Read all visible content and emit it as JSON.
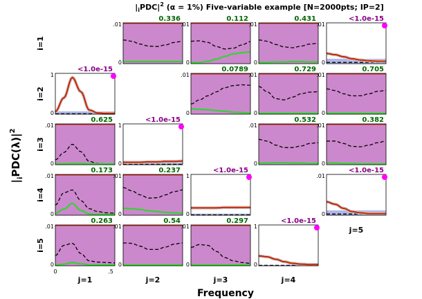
{
  "chart_data": {
    "type": "line",
    "title": "|iPDC|² (α = 1%) Five-variable example [N=2000pts; IP=2]",
    "title_parts": {
      "lead": "|",
      "sub_i": "i",
      "mid": "PDC|",
      "sup_2": "2",
      "rest": " (α = 1%) Five-variable example [N=2000pts; IP=2]"
    },
    "xlabel": "Frequency",
    "ylabel": {
      "lead": "|",
      "sub_i": "i",
      "mid": "PDC(λ)|",
      "sup_2": "2"
    },
    "row_labels": [
      "i=1",
      "i=2",
      "i=3",
      "i=4",
      "i=5"
    ],
    "col_labels": [
      "j=1",
      "j=2",
      "j=3",
      "j=4",
      "j=5"
    ],
    "xlim": [
      0,
      0.5
    ],
    "x_ticks": [
      "0",
      ".5"
    ],
    "grid": false,
    "legend": "none",
    "colors": {
      "significant_fill": "#cc88cc",
      "nonsignificant_fill": "#b0b8e8",
      "threshold": "#000000",
      "pdc_significant": "#cc2200",
      "pdc_nonsignificant": "#22dd22",
      "pvalue_significant": "#880088",
      "pvalue_nonsignificant": "#006600",
      "significance_marker": "#ff00ff"
    },
    "panels": [
      {
        "i": 1,
        "j": 2,
        "ytick": [
          ".01",
          "0"
        ],
        "ymax": 0.01,
        "pvalue": "0.336",
        "significant": false,
        "fill_to": 0.01,
        "threshold": [
          0.0058,
          0.0055,
          0.0048,
          0.0043,
          0.0042,
          0.0046,
          0.0052,
          0.0055
        ],
        "pdc": [
          0.0005,
          0.0005,
          0.0005,
          0.0005,
          0.0005,
          0.0005,
          0.0005,
          0.0005
        ]
      },
      {
        "i": 1,
        "j": 3,
        "ytick": [
          ".01",
          "0"
        ],
        "ymax": 0.01,
        "pvalue": "0.112",
        "significant": false,
        "fill_to": 0.01,
        "threshold": [
          0.0055,
          0.0056,
          0.0052,
          0.0042,
          0.0036,
          0.0038,
          0.0046,
          0.0054
        ],
        "pdc": [
          0.0003,
          0.0003,
          0.0006,
          0.0011,
          0.0018,
          0.0024,
          0.0027,
          0.0029
        ]
      },
      {
        "i": 1,
        "j": 4,
        "ytick": [
          ".01",
          "0"
        ],
        "ymax": 0.01,
        "pvalue": "0.431",
        "significant": false,
        "fill_to": 0.01,
        "threshold": [
          0.0058,
          0.0055,
          0.0047,
          0.0041,
          0.0039,
          0.0043,
          0.0048,
          0.005
        ],
        "pdc": [
          0.0003,
          0.0003,
          0.0004,
          0.0004,
          0.0005,
          0.0005,
          0.0004,
          0.0004
        ]
      },
      {
        "i": 1,
        "j": 5,
        "ytick": [
          ".01",
          "0"
        ],
        "ymax": 0.01,
        "pvalue": "<1.0e-15",
        "significant": true,
        "fill_to": 0.0012,
        "threshold": [
          0.0003,
          0.0003,
          0.0003,
          0.0003,
          0.0003,
          0.0003,
          0.0003,
          0.0003
        ],
        "pdc": [
          0.0025,
          0.0022,
          0.0017,
          0.0012,
          0.0009,
          0.0007,
          0.0006,
          0.0006
        ]
      },
      {
        "i": 2,
        "j": 1,
        "ytick": [
          "1",
          "0"
        ],
        "ymax": 1,
        "pvalue": "<1.0e-15",
        "significant": true,
        "fill_to": 0.07,
        "threshold": [
          0.01,
          0.01,
          0.01,
          0.01,
          0.01,
          0.01,
          0.01,
          0.01
        ],
        "pdc": [
          0.06,
          0.4,
          0.9,
          0.55,
          0.1,
          0.03,
          0.02,
          0.02
        ]
      },
      {
        "i": 2,
        "j": 3,
        "ytick": [
          ".01",
          "0"
        ],
        "ymax": 0.01,
        "pvalue": "0.0789",
        "significant": false,
        "fill_to": 0.01,
        "threshold": [
          0.0025,
          0.0035,
          0.0045,
          0.0055,
          0.0065,
          0.007,
          0.0072,
          0.0071
        ],
        "pdc": [
          0.0013,
          0.0012,
          0.0011,
          0.0009,
          0.0007,
          0.0005,
          0.0004,
          0.0003
        ]
      },
      {
        "i": 2,
        "j": 4,
        "ytick": [
          ".01",
          "0"
        ],
        "ymax": 0.01,
        "pvalue": "0.729",
        "significant": false,
        "fill_to": 0.01,
        "threshold": [
          0.0068,
          0.0055,
          0.0038,
          0.0035,
          0.0042,
          0.005,
          0.0054,
          0.0055
        ],
        "pdc": [
          0.0002,
          0.0002,
          0.0002,
          0.0002,
          0.0002,
          0.0002,
          0.0002,
          0.0002
        ]
      },
      {
        "i": 2,
        "j": 5,
        "ytick": [
          ".01",
          "0"
        ],
        "ymax": 0.01,
        "pvalue": "0.705",
        "significant": false,
        "fill_to": 0.01,
        "threshold": [
          0.0062,
          0.0058,
          0.005,
          0.0045,
          0.0045,
          0.005,
          0.0056,
          0.0058
        ],
        "pdc": [
          0.0002,
          0.0002,
          0.0002,
          0.0002,
          0.0002,
          0.0002,
          0.0002,
          0.0002
        ]
      },
      {
        "i": 3,
        "j": 1,
        "ytick": [
          ".01",
          "0"
        ],
        "ymax": 0.01,
        "pvalue": "0.625",
        "significant": false,
        "fill_to": 0.01,
        "threshold": [
          0.0012,
          0.003,
          0.005,
          0.0032,
          0.0008,
          0.0003,
          0.0002,
          0.0002
        ],
        "pdc": [
          0.0002,
          0.0002,
          0.0003,
          0.0003,
          0.0002,
          0.0002,
          0.0002,
          0.0002
        ]
      },
      {
        "i": 3,
        "j": 2,
        "ytick": [
          "1",
          "0"
        ],
        "ymax": 1,
        "pvalue": "<1.0e-15",
        "significant": true,
        "fill_to": 0.05,
        "threshold": [
          0.01,
          0.01,
          0.01,
          0.01,
          0.01,
          0.01,
          0.01,
          0.01
        ],
        "pdc": [
          0.06,
          0.06,
          0.06,
          0.07,
          0.07,
          0.08,
          0.08,
          0.09
        ]
      },
      {
        "i": 3,
        "j": 4,
        "ytick": [
          ".01",
          "0"
        ],
        "ymax": 0.01,
        "pvalue": "0.532",
        "significant": false,
        "fill_to": 0.01,
        "threshold": [
          0.0062,
          0.0058,
          0.0048,
          0.0042,
          0.0042,
          0.0046,
          0.0052,
          0.0054
        ],
        "pdc": [
          0.0004,
          0.0004,
          0.0005,
          0.0005,
          0.0004,
          0.0004,
          0.0003,
          0.0003
        ]
      },
      {
        "i": 3,
        "j": 5,
        "ytick": [
          ".01",
          "0"
        ],
        "ymax": 0.01,
        "pvalue": "0.382",
        "significant": false,
        "fill_to": 0.01,
        "threshold": [
          0.0058,
          0.0058,
          0.0052,
          0.0045,
          0.0044,
          0.0048,
          0.0054,
          0.0058
        ],
        "pdc": [
          0.0004,
          0.0004,
          0.0003,
          0.0003,
          0.0002,
          0.0002,
          0.0002,
          0.0002
        ]
      },
      {
        "i": 4,
        "j": 1,
        "ytick": [
          ".01",
          "0"
        ],
        "ymax": 0.01,
        "pvalue": "0.173",
        "significant": false,
        "fill_to": 0.01,
        "threshold": [
          0.0025,
          0.0055,
          0.0062,
          0.0036,
          0.0016,
          0.0009,
          0.0006,
          0.0005
        ],
        "pdc": [
          0.0005,
          0.0015,
          0.0029,
          0.0012,
          0.0003,
          0.0002,
          0.0002,
          0.0002
        ]
      },
      {
        "i": 4,
        "j": 2,
        "ytick": [
          ".01",
          "0"
        ],
        "ymax": 0.01,
        "pvalue": "0.237",
        "significant": false,
        "fill_to": 0.01,
        "threshold": [
          0.0068,
          0.006,
          0.005,
          0.0042,
          0.0043,
          0.005,
          0.0058,
          0.0062
        ],
        "pdc": [
          0.0017,
          0.0016,
          0.0014,
          0.0011,
          0.0009,
          0.0007,
          0.0006,
          0.0005
        ]
      },
      {
        "i": 4,
        "j": 3,
        "ytick": [
          "1",
          "0"
        ],
        "ymax": 1,
        "pvalue": "<1.0e-15",
        "significant": true,
        "fill_to": 0.04,
        "threshold": [
          0.01,
          0.01,
          0.01,
          0.01,
          0.01,
          0.01,
          0.01,
          0.01
        ],
        "pdc": [
          0.18,
          0.18,
          0.18,
          0.18,
          0.19,
          0.19,
          0.19,
          0.19
        ]
      },
      {
        "i": 4,
        "j": 5,
        "ytick": [
          ".01",
          "0"
        ],
        "ymax": 0.01,
        "pvalue": "<1.0e-15",
        "significant": true,
        "fill_to": 0.0012,
        "threshold": [
          0.0003,
          0.0003,
          0.0003,
          0.0003,
          0.0003,
          0.0003,
          0.0003,
          0.0003
        ],
        "pdc": [
          0.0033,
          0.0027,
          0.0017,
          0.0009,
          0.0006,
          0.0004,
          0.0004,
          0.0004
        ]
      },
      {
        "i": 5,
        "j": 1,
        "ytick": [
          ".01",
          "0"
        ],
        "ymax": 0.01,
        "pvalue": "0.263",
        "significant": false,
        "fill_to": 0.01,
        "threshold": [
          0.0025,
          0.005,
          0.0055,
          0.003,
          0.0012,
          0.0009,
          0.0008,
          0.0007
        ],
        "pdc": [
          0.0002,
          0.0004,
          0.0008,
          0.0005,
          0.0002,
          0.0002,
          0.0002,
          0.0002
        ]
      },
      {
        "i": 5,
        "j": 2,
        "ytick": [
          ".01",
          "0"
        ],
        "ymax": 0.01,
        "pvalue": "0.54",
        "significant": false,
        "fill_to": 0.01,
        "threshold": [
          0.0056,
          0.0055,
          0.0048,
          0.004,
          0.004,
          0.0046,
          0.0053,
          0.0056
        ],
        "pdc": [
          0.0002,
          0.0002,
          0.0002,
          0.0002,
          0.0002,
          0.0002,
          0.0002,
          0.0002
        ]
      },
      {
        "i": 5,
        "j": 3,
        "ytick": [
          ".01",
          "0"
        ],
        "ymax": 0.01,
        "pvalue": "0.297",
        "significant": false,
        "fill_to": 0.01,
        "threshold": [
          0.0045,
          0.0052,
          0.005,
          0.0035,
          0.002,
          0.0012,
          0.0008,
          0.0006
        ],
        "pdc": [
          0.0002,
          0.0002,
          0.0002,
          0.0002,
          0.0002,
          0.0002,
          0.0002,
          0.0002
        ]
      },
      {
        "i": 5,
        "j": 4,
        "ytick": [
          "1",
          "0"
        ],
        "ymax": 1,
        "pvalue": "<1.0e-15",
        "significant": true,
        "fill_to": 0.02,
        "threshold": [
          0.01,
          0.01,
          0.01,
          0.01,
          0.01,
          0.01,
          0.01,
          0.01
        ],
        "pdc": [
          0.24,
          0.22,
          0.16,
          0.1,
          0.06,
          0.04,
          0.03,
          0.03
        ]
      }
    ]
  }
}
